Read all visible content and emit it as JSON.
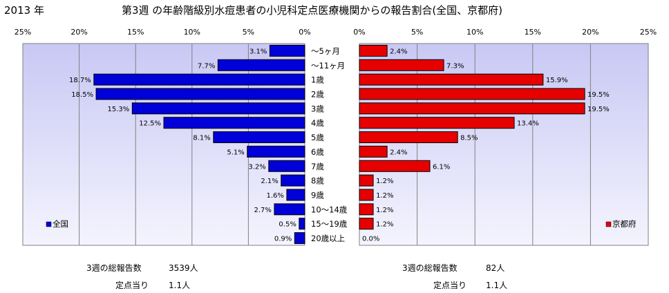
{
  "header": {
    "year": "2013 年",
    "title": "第3週 の年齢階級別水痘患者の小児科定点医療機関からの報告割合(全国、京都府)"
  },
  "chart_data": {
    "type": "bar",
    "orientation": "horizontal",
    "layout": "butterfly",
    "categories": [
      "～5ヶ月",
      "～11ヶ月",
      "1歳",
      "2歳",
      "3歳",
      "4歳",
      "5歳",
      "6歳",
      "7歳",
      "8歳",
      "9歳",
      "10～14歳",
      "15～19歳",
      "20歳以上"
    ],
    "xlim": [
      0,
      25
    ],
    "tick_labels": [
      "0%",
      "5%",
      "10%",
      "15%",
      "20%",
      "25%"
    ],
    "grid": true,
    "series": [
      {
        "name": "全国",
        "side": "left",
        "color": "#0000d8",
        "values": [
          3.1,
          7.7,
          18.7,
          18.5,
          15.3,
          12.5,
          8.1,
          5.1,
          3.2,
          2.1,
          1.6,
          2.7,
          0.5,
          0.9
        ],
        "labels": [
          "3.1%",
          "7.7%",
          "18.7%",
          "18.5%",
          "15.3%",
          "12.5%",
          "8.1%",
          "5.1%",
          "3.2%",
          "2.1%",
          "1.6%",
          "2.7%",
          "0.5%",
          "0.9%"
        ],
        "legend_position": "bottom-left"
      },
      {
        "name": "京都府",
        "side": "right",
        "color": "#e60000",
        "values": [
          2.4,
          7.3,
          15.9,
          19.5,
          19.5,
          13.4,
          8.5,
          2.4,
          6.1,
          1.2,
          1.2,
          1.2,
          1.2,
          0.0
        ],
        "labels": [
          "2.4%",
          "7.3%",
          "15.9%",
          "19.5%",
          "19.5%",
          "13.4%",
          "8.5%",
          "2.4%",
          "6.1%",
          "1.2%",
          "1.2%",
          "1.2%",
          "1.2%",
          "0.0%"
        ],
        "legend_position": "bottom-right"
      }
    ]
  },
  "footer": {
    "national": {
      "total_label": "3週の総報告数",
      "total_value": "3539人",
      "per_label": "定点当り",
      "per_value": "1.1人"
    },
    "kyoto": {
      "total_label": "3週の総報告数",
      "total_value": "82人",
      "per_label": "定点当り",
      "per_value": "1.1人"
    }
  },
  "colors": {
    "plot_bg_top": "#c8c8f4",
    "plot_bg_bottom": "#f4f4fe",
    "grid": "#808080",
    "border": "#808080"
  }
}
